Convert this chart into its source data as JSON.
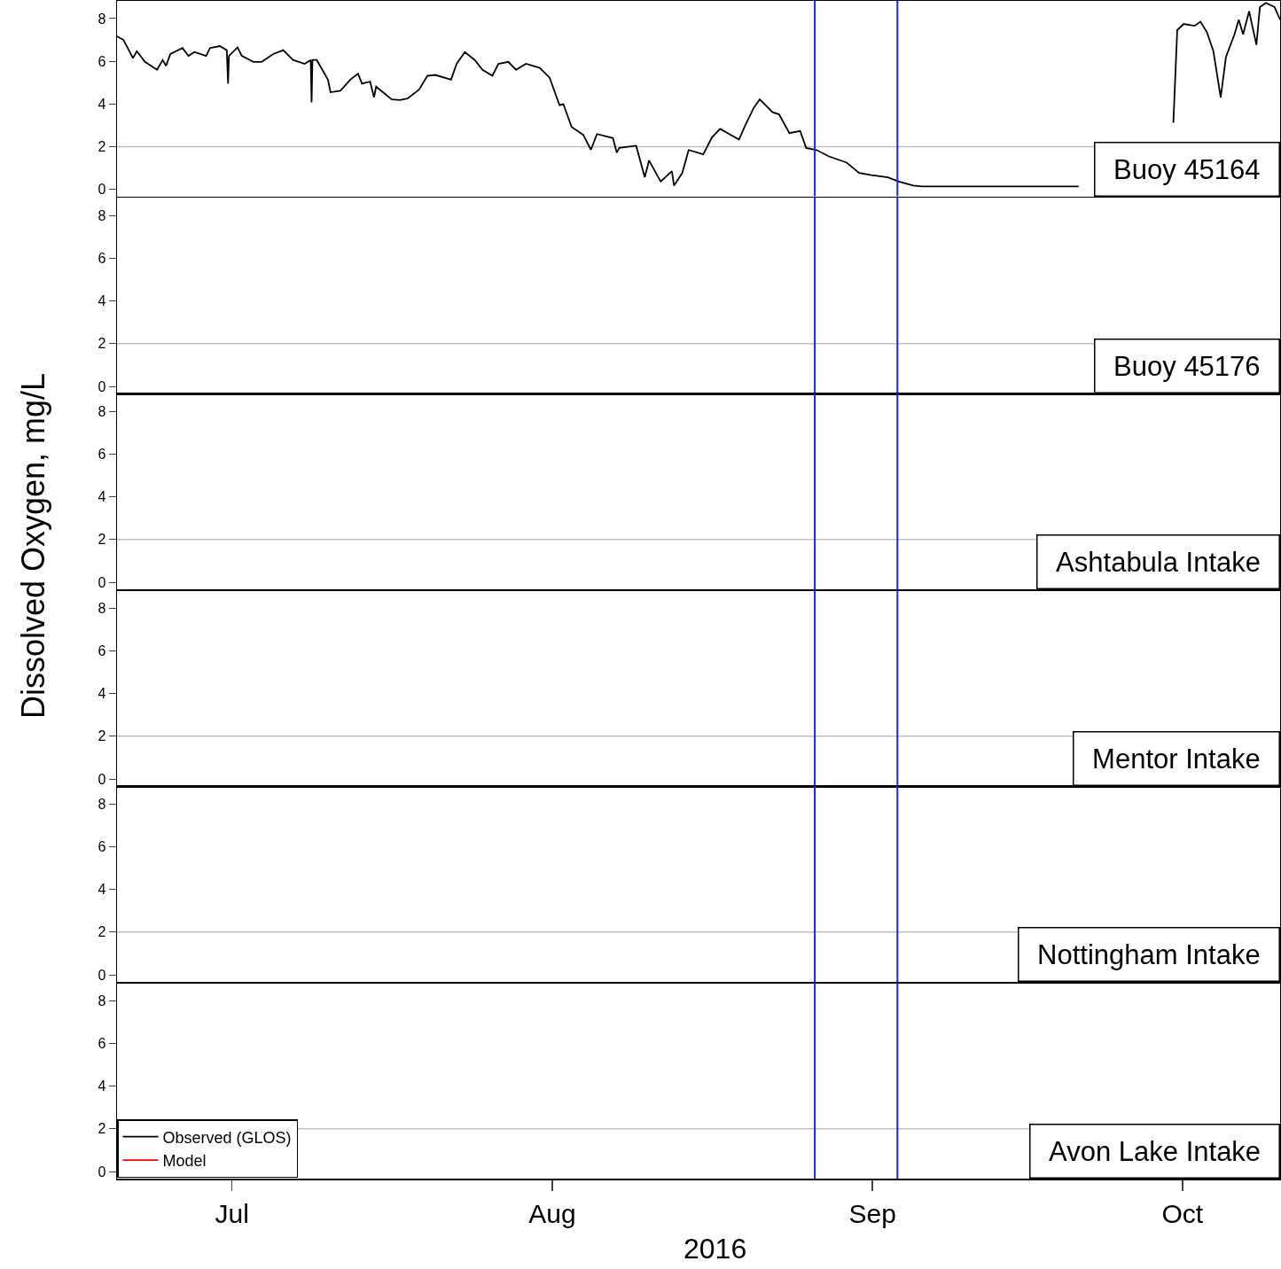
{
  "chart_data": [
    {
      "type": "line",
      "annotations": [
        "Buoy 45164"
      ],
      "tick_labels": "y",
      "xlim": [
        "2016-06-19T21:00",
        "2016-10-10T11:00"
      ],
      "ylim": [
        -0.33,
        8.83
      ],
      "yticks": [
        0,
        2,
        4,
        6,
        8
      ],
      "marker": "none",
      "line_style": "solid",
      "ref_lines": [
        {
          "axis": "y",
          "value": 2,
          "color": "#c0c0c0"
        },
        {
          "axis": "x",
          "value": "2016-08-26T10:00",
          "color": "#1f1fe0"
        },
        {
          "axis": "x",
          "value": "2016-09-03T10:00",
          "color": "#1f1fe0"
        }
      ],
      "legend": "bottom left",
      "x": [
        "2016-06-19T21:00",
        "2016-06-20T12:00",
        "2016-06-21T10:00",
        "2016-06-21T19:00",
        "2016-06-22T14:00",
        "2016-06-23T18:00",
        "2016-06-24T07:00",
        "2016-06-24T15:00",
        "2016-06-25T01:00",
        "2016-06-26T05:00",
        "2016-06-26T19:00",
        "2016-06-27T09:00",
        "2016-06-28T12:00",
        "2016-06-28T21:00",
        "2016-06-29T20:00",
        "2016-06-30T12:00",
        "2016-06-30T15:00",
        "2016-06-30T17:00",
        "2016-07-01T13:00",
        "2016-07-01T23:00",
        "2016-07-03T02:00",
        "2016-07-03T21:00",
        "2016-07-05T00:00",
        "2016-07-05T23:00",
        "2016-07-06T22:00",
        "2016-07-08T01:00",
        "2016-07-08T15:00",
        "2016-07-08T17:00",
        "2016-07-08T19:00",
        "2016-07-09T05:00",
        "2016-07-10T07:00",
        "2016-07-10T13:00",
        "2016-07-11T12:00",
        "2016-07-12T11:00",
        "2016-07-13T05:00",
        "2016-07-13T14:00",
        "2016-07-14T09:00",
        "2016-07-14T18:00",
        "2016-07-14T23:00",
        "2016-07-16T11:00",
        "2016-07-17T06:00",
        "2016-07-18T00:00",
        "2016-07-19T03:00",
        "2016-07-19T22:00",
        "2016-07-20T16:00",
        "2016-07-22T05:00",
        "2016-07-22T18:00",
        "2016-07-23T13:00",
        "2016-07-24T12:00",
        "2016-07-25T06:00",
        "2016-07-26T05:00",
        "2016-07-26T19:00",
        "2016-07-27T18:00",
        "2016-07-28T12:00",
        "2016-07-29T11:00",
        "2016-07-30T19:00",
        "2016-07-31T18:00",
        "2016-08-01T17:00",
        "2016-08-02T02:00",
        "2016-08-02T21:00",
        "2016-08-04T00:00",
        "2016-08-04T18:00",
        "2016-08-05T08:00",
        "2016-08-06T21:00",
        "2016-08-07T06:00",
        "2016-08-07T12:00",
        "2016-08-09T03:00",
        "2016-08-09T23:00",
        "2016-08-10T09:00",
        "2016-08-11T12:00",
        "2016-08-12T14:00",
        "2016-08-12T19:00",
        "2016-08-13T14:00",
        "2016-08-14T05:00",
        "2016-08-15T15:00",
        "2016-08-16T11:00",
        "2016-08-17T06:00",
        "2016-08-19T02:00",
        "2016-08-19T17:00",
        "2016-08-20T12:00",
        "2016-08-21T02:00",
        "2016-08-21T17:00",
        "2016-08-22T08:00",
        "2016-08-22T23:00",
        "2016-08-23T23:00",
        "2016-08-25T00:00",
        "2016-08-25T14:00",
        "2016-08-26T14:00",
        "2016-08-27T19:00",
        "2016-08-29T12:00",
        "2016-08-30T17:00",
        "2016-08-31T22:00",
        "2016-09-02T12:00",
        "2016-09-03T13:00",
        "2016-09-04T23:00",
        "2016-09-05T19:00",
        "2016-09-20T23:00",
        "2016-09-29T22:00",
        "2016-09-30T03:00",
        "2016-09-30T12:00",
        "2016-10-01T03:00",
        "2016-10-02T04:00",
        "2016-10-02T18:00",
        "2016-10-03T09:00",
        "2016-10-04T00:00",
        "2016-10-04T17:00",
        "2016-10-05T05:00",
        "2016-10-06T01:00",
        "2016-10-06T11:00",
        "2016-10-06T21:00",
        "2016-10-07T11:00",
        "2016-10-08T04:00",
        "2016-10-08T12:00",
        "2016-10-09T02:00",
        "2016-10-09T22:00",
        "2016-10-10T11:00"
      ],
      "series": [
        {
          "name": "Observed (GLOS)",
          "color": "#000000",
          "values": [
            7.17,
            7.0,
            6.15,
            6.47,
            5.97,
            5.6,
            6.06,
            5.79,
            6.34,
            6.62,
            6.25,
            6.43,
            6.25,
            6.62,
            6.71,
            6.52,
            4.95,
            6.25,
            6.65,
            6.25,
            5.97,
            5.97,
            6.34,
            6.52,
            6.06,
            5.88,
            6.06,
            4.07,
            6.06,
            6.06,
            5.14,
            4.55,
            4.62,
            5.14,
            5.42,
            4.95,
            5.05,
            4.31,
            4.81,
            4.21,
            4.18,
            4.25,
            4.68,
            5.32,
            5.36,
            5.14,
            5.88,
            6.43,
            6.06,
            5.6,
            5.32,
            5.88,
            5.97,
            5.6,
            5.88,
            5.69,
            5.23,
            3.94,
            3.99,
            2.92,
            2.55,
            1.85,
            2.59,
            2.4,
            1.72,
            1.94,
            2.04,
            0.56,
            1.35,
            0.36,
            0.85,
            0.17,
            0.76,
            1.84,
            1.64,
            2.43,
            2.83,
            2.33,
            3.02,
            3.81,
            4.21,
            3.91,
            3.61,
            3.51,
            2.63,
            2.73,
            1.94,
            1.84,
            1.54,
            1.25,
            0.76,
            0.66,
            0.56,
            0.36,
            0.17,
            0.13,
            0.13,
            null,
            3.12,
            7.46,
            7.75,
            7.66,
            7.85,
            7.36,
            6.47,
            4.3,
            6.18,
            7.26,
            7.95,
            7.26,
            8.34,
            6.77,
            8.54,
            8.74,
            8.54,
            7.95
          ]
        },
        {
          "name": "Model",
          "color": "#ff0000",
          "values": [
            null,
            null,
            null,
            null,
            null,
            null,
            null,
            null,
            null,
            null,
            null,
            null,
            null,
            null,
            null,
            null,
            null,
            null,
            null,
            null,
            null,
            null,
            null,
            null,
            null,
            null,
            null,
            null,
            null,
            null,
            null,
            null,
            null,
            null,
            null,
            null,
            null,
            null,
            null,
            null,
            null,
            null,
            null,
            null,
            null,
            null,
            null,
            null,
            null,
            null,
            null,
            null,
            null,
            null,
            null,
            null,
            null,
            null,
            null,
            null,
            null,
            null,
            null,
            null,
            null,
            null,
            null,
            null,
            null,
            null,
            null,
            null,
            null,
            null,
            null,
            null,
            null,
            null,
            null,
            null,
            null,
            null,
            null,
            null,
            null,
            null,
            null,
            null,
            null,
            null,
            null,
            null,
            null,
            null,
            null,
            null,
            null,
            null,
            null,
            null,
            null,
            null,
            null,
            null,
            null,
            null,
            null,
            null,
            null,
            null,
            null,
            null,
            null,
            null,
            null,
            null
          ]
        }
      ]
    },
    {
      "type": "line",
      "annotations": [
        "Buoy 45176"
      ],
      "tick_labels": "y",
      "xlim": [
        "2016-06-19T21:00",
        "2016-10-10T11:00"
      ],
      "ylim": [
        -0.33,
        8.83
      ],
      "yticks": [
        0,
        2,
        4,
        6,
        8
      ],
      "ref_lines": [
        {
          "axis": "y",
          "value": 2,
          "color": "#c0c0c0"
        },
        {
          "axis": "x",
          "value": "2016-08-26T10:00",
          "color": "#1f1fe0"
        },
        {
          "axis": "x",
          "value": "2016-09-03T10:00",
          "color": "#1f1fe0"
        }
      ]
    },
    {
      "type": "line",
      "ylabel": "Dissolved Oxygen, mg/L",
      "annotations": [
        "Ashtabula Intake"
      ],
      "tick_labels": "y",
      "xlim": [
        "2016-06-19T21:00",
        "2016-10-10T11:00"
      ],
      "ylim": [
        -0.33,
        8.83
      ],
      "yticks": [
        0,
        2,
        4,
        6,
        8
      ],
      "ref_lines": [
        {
          "axis": "y",
          "value": 2,
          "color": "#c0c0c0"
        },
        {
          "axis": "x",
          "value": "2016-08-26T10:00",
          "color": "#1f1fe0"
        },
        {
          "axis": "x",
          "value": "2016-09-03T10:00",
          "color": "#1f1fe0"
        }
      ]
    },
    {
      "type": "line",
      "annotations": [
        "Mentor Intake"
      ],
      "tick_labels": "y",
      "xlim": [
        "2016-06-19T21:00",
        "2016-10-10T11:00"
      ],
      "ylim": [
        -0.33,
        8.83
      ],
      "yticks": [
        0,
        2,
        4,
        6,
        8
      ],
      "ref_lines": [
        {
          "axis": "y",
          "value": 2,
          "color": "#c0c0c0"
        },
        {
          "axis": "x",
          "value": "2016-08-26T10:00",
          "color": "#1f1fe0"
        },
        {
          "axis": "x",
          "value": "2016-09-03T10:00",
          "color": "#1f1fe0"
        }
      ]
    },
    {
      "type": "line",
      "annotations": [
        "Nottingham Intake"
      ],
      "tick_labels": "y",
      "xlim": [
        "2016-06-19T21:00",
        "2016-10-10T11:00"
      ],
      "ylim": [
        -0.33,
        8.83
      ],
      "yticks": [
        0,
        2,
        4,
        6,
        8
      ],
      "ref_lines": [
        {
          "axis": "y",
          "value": 2,
          "color": "#c0c0c0"
        },
        {
          "axis": "x",
          "value": "2016-08-26T10:00",
          "color": "#1f1fe0"
        },
        {
          "axis": "x",
          "value": "2016-09-03T10:00",
          "color": "#1f1fe0"
        }
      ]
    },
    {
      "type": "line",
      "xlabel": "2016",
      "annotations": [
        "Avon Lake Intake"
      ],
      "xlim": [
        "2016-06-19T21:00",
        "2016-10-10T11:00"
      ],
      "xticks": [
        {
          "value": "2016-07-01",
          "label": "Jul"
        },
        {
          "value": "2016-08-01",
          "label": "Aug"
        },
        {
          "value": "2016-09-01",
          "label": "Sep"
        },
        {
          "value": "2016-10-01",
          "label": "Oct"
        }
      ],
      "ylim": [
        -0.33,
        8.83
      ],
      "yticks": [
        0,
        2,
        4,
        6,
        8
      ],
      "ref_lines": [
        {
          "axis": "y",
          "value": 2,
          "color": "#c0c0c0"
        },
        {
          "axis": "x",
          "value": "2016-08-26T10:00",
          "color": "#1f1fe0"
        },
        {
          "axis": "x",
          "value": "2016-09-03T10:00",
          "color": "#1f1fe0"
        }
      ]
    }
  ]
}
